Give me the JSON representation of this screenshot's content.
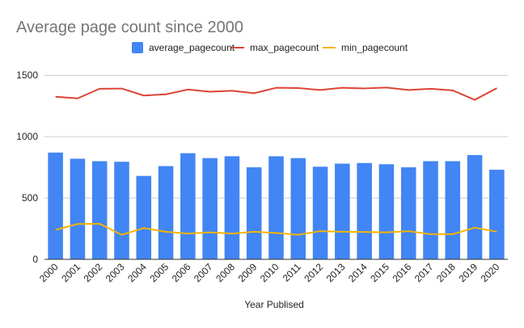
{
  "chart_data": {
    "type": "bar",
    "title": "Average page count since 2000",
    "xlabel": "Year Publised",
    "ylabel": "",
    "ylim": [
      0,
      1600
    ],
    "yticks": [
      "0",
      "500",
      "1000",
      "1500"
    ],
    "grid": true,
    "legend_position": "top",
    "categories": [
      "2000",
      "2001",
      "2002",
      "2003",
      "2004",
      "2005",
      "2006",
      "2007",
      "2008",
      "2009",
      "2010",
      "2011",
      "2012",
      "2013",
      "2014",
      "2015",
      "2016",
      "2017",
      "2018",
      "2019",
      "2020"
    ],
    "series": [
      {
        "name": "average_pagecount",
        "type": "bar",
        "color": "#4285f4",
        "values": [
          870,
          820,
          800,
          795,
          680,
          760,
          865,
          825,
          840,
          750,
          840,
          825,
          755,
          780,
          785,
          775,
          750,
          800,
          800,
          850,
          730
        ]
      },
      {
        "name": "max_pagecount",
        "type": "line",
        "color": "#db4437",
        "values": [
          1325,
          1312,
          1390,
          1392,
          1335,
          1345,
          1384,
          1366,
          1374,
          1354,
          1398,
          1396,
          1380,
          1398,
          1393,
          1400,
          1380,
          1390,
          1377,
          1300,
          1395
        ]
      },
      {
        "name": "min_pagecount",
        "type": "line",
        "color": "#f4b400",
        "values": [
          240,
          288,
          290,
          200,
          255,
          225,
          210,
          220,
          210,
          225,
          215,
          200,
          230,
          225,
          223,
          220,
          230,
          205,
          205,
          258,
          225
        ]
      }
    ]
  }
}
